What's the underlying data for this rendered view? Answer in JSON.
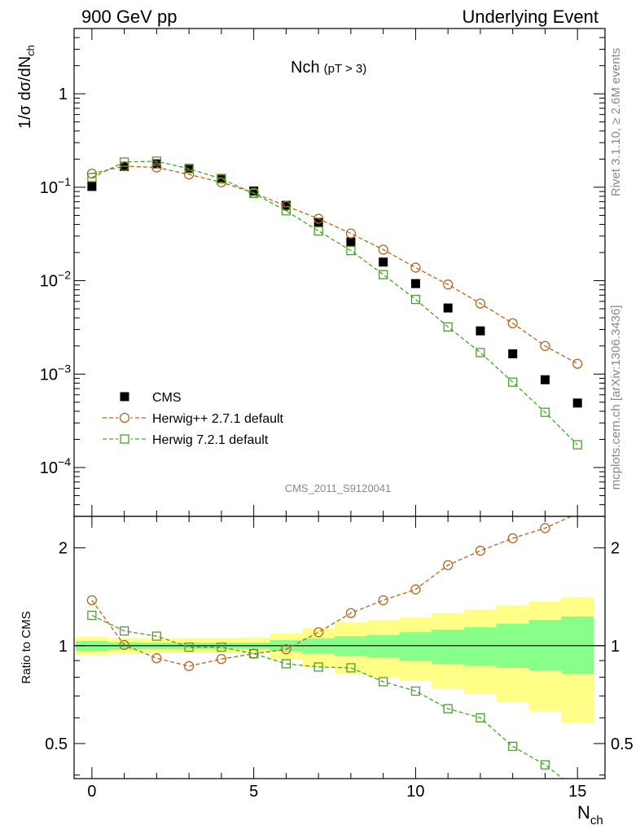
{
  "header": {
    "left": "900 GeV pp",
    "right": "Underlying Event"
  },
  "side_labels": {
    "upper": "Rivet 3.1.10, ≥ 2.6M events",
    "lower": "mcplots.cern.ch [arXiv:1306.3436]"
  },
  "plot_title": {
    "main": "Nch",
    "sub": "(pT >  3)"
  },
  "watermark": "CMS_2011_S9120041",
  "chart_data": {
    "type": "scatter",
    "xlabel": "N",
    "xlabel_sub": "ch",
    "ylabel": "1/σ dσ/dN",
    "ylabel_sub": "ch",
    "xlim": [
      -0.55,
      15.85
    ],
    "x_ticks": [
      "0",
      "5",
      "10",
      "15"
    ],
    "main_panel": {
      "yscale": "log",
      "ylim": [
        3e-05,
        5.0
      ],
      "y_ticks": [
        {
          "base": "10",
          "exp": "−4",
          "value": 0.0001
        },
        {
          "base": "10",
          "exp": "−3",
          "value": 0.001
        },
        {
          "base": "10",
          "exp": "−2",
          "value": 0.01
        },
        {
          "base": "10",
          "exp": "−1",
          "value": 0.1
        },
        {
          "base": "1",
          "exp": "",
          "value": 1
        }
      ],
      "series": [
        {
          "name": "CMS",
          "marker": "filled-square",
          "color": "#000000",
          "x": [
            0,
            1,
            2,
            3,
            4,
            5,
            6,
            7,
            8,
            9,
            10,
            11,
            12,
            13,
            14,
            15
          ],
          "y": [
            0.102,
            0.167,
            0.178,
            0.159,
            0.124,
            0.091,
            0.064,
            0.042,
            0.026,
            0.0158,
            0.0093,
            0.0051,
            0.0029,
            0.00165,
            0.00087,
            0.00049
          ]
        },
        {
          "name": "Herwig++ 2.7.1 default",
          "marker": "open-circle",
          "color": "#b5651d",
          "x": [
            0,
            1,
            2,
            3,
            4,
            5,
            6,
            7,
            8,
            9,
            10,
            11,
            12,
            13,
            14,
            15
          ],
          "y": [
            0.14,
            0.168,
            0.163,
            0.137,
            0.113,
            0.087,
            0.063,
            0.046,
            0.032,
            0.0215,
            0.0138,
            0.0091,
            0.0057,
            0.0035,
            0.002,
            0.00129
          ]
        },
        {
          "name": "Herwig 7.2.1 default",
          "marker": "open-square",
          "color": "#4aa02c",
          "x": [
            0,
            1,
            2,
            3,
            4,
            5,
            6,
            7,
            8,
            9,
            10,
            11,
            12,
            13,
            14,
            15
          ],
          "y": [
            0.127,
            0.186,
            0.19,
            0.158,
            0.123,
            0.086,
            0.056,
            0.034,
            0.021,
            0.0116,
            0.0063,
            0.0032,
            0.0017,
            0.00082,
            0.00039,
            0.000175
          ]
        }
      ]
    },
    "ratio_panel": {
      "ylabel": "Ratio to CMS",
      "yscale": "log",
      "ylim": [
        0.39,
        2.5
      ],
      "y_ticks": [
        {
          "label": "0.5",
          "value": 0.5
        },
        {
          "label": "1",
          "value": 1
        },
        {
          "label": "2",
          "value": 2
        }
      ],
      "band_x_edges": [
        -0.5,
        0.5,
        1.5,
        2.5,
        3.5,
        4.5,
        5.5,
        6.5,
        7.5,
        8.5,
        9.5,
        10.5,
        11.5,
        12.5,
        13.5,
        14.5,
        15.5
      ],
      "band_inner": {
        "color": "#88ff88",
        "lo": [
          0.965,
          0.975,
          0.978,
          0.978,
          0.978,
          0.978,
          0.96,
          0.945,
          0.93,
          0.92,
          0.9,
          0.88,
          0.87,
          0.855,
          0.84,
          0.82
        ],
        "hi": [
          1.035,
          1.025,
          1.022,
          1.022,
          1.022,
          1.022,
          1.04,
          1.055,
          1.07,
          1.08,
          1.1,
          1.12,
          1.14,
          1.17,
          1.2,
          1.23
        ]
      },
      "band_outer": {
        "color": "#ffff88",
        "lo": [
          0.935,
          0.945,
          0.95,
          0.95,
          0.95,
          0.95,
          0.91,
          0.86,
          0.82,
          0.8,
          0.78,
          0.74,
          0.71,
          0.67,
          0.63,
          0.58
        ],
        "hi": [
          1.065,
          1.055,
          1.055,
          1.055,
          1.055,
          1.06,
          1.09,
          1.13,
          1.18,
          1.2,
          1.22,
          1.26,
          1.29,
          1.33,
          1.37,
          1.41
        ]
      },
      "series": [
        {
          "name": "Herwig++ 2.7.1 default",
          "color": "#b5651d",
          "marker": "open-circle",
          "x": [
            0,
            1,
            2,
            3,
            4,
            5,
            6,
            7,
            8,
            9,
            10,
            11,
            12,
            13,
            14,
            15
          ],
          "y": [
            1.38,
            1.005,
            0.915,
            0.865,
            0.91,
            0.945,
            0.975,
            1.1,
            1.26,
            1.38,
            1.49,
            1.77,
            1.96,
            2.14,
            2.3,
            2.55
          ]
        },
        {
          "name": "Herwig 7.2.1 default",
          "color": "#4aa02c",
          "marker": "open-square",
          "x": [
            0,
            1,
            2,
            3,
            4,
            5,
            6,
            7,
            8,
            9,
            10,
            11,
            12,
            13,
            14,
            15
          ],
          "y": [
            1.24,
            1.11,
            1.07,
            0.99,
            0.99,
            0.945,
            0.88,
            0.86,
            0.855,
            0.775,
            0.725,
            0.64,
            0.6,
            0.49,
            0.43,
            0.36
          ]
        }
      ]
    }
  }
}
